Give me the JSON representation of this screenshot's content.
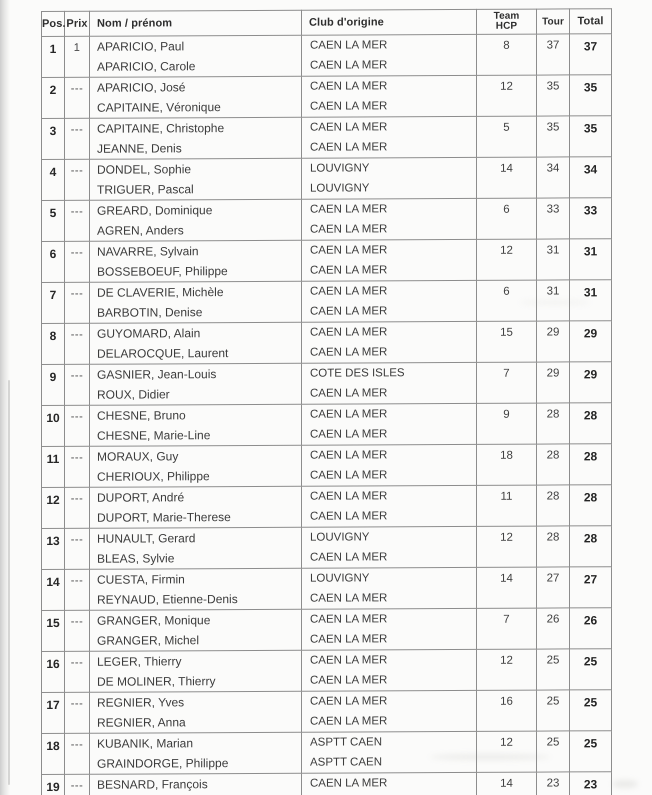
{
  "colors": {
    "page_bg": "#fbfbfa",
    "grid_line": "#8d8d8d",
    "grid_line_dark": "#5f5f5f",
    "text": "#3a3a3a",
    "text_bold": "#262626",
    "scan_edge": "#c6c6c6"
  },
  "table": {
    "headers": {
      "pos": "Pos.",
      "prix": "Prix",
      "name": "Nom / prénom",
      "club": "Club d'origine",
      "team_hcp_line1": "Team",
      "team_hcp_line2": "HCP",
      "tour": "Tour",
      "total": "Total"
    },
    "rows": [
      {
        "pos": "1",
        "prix": "1",
        "players": [
          {
            "name": "APARICIO, Paul",
            "club": "CAEN LA MER"
          },
          {
            "name": "APARICIO, Carole",
            "club": "CAEN LA MER"
          }
        ],
        "team_hcp": "8",
        "tour": "37",
        "total": "37"
      },
      {
        "pos": "2",
        "prix": "---",
        "players": [
          {
            "name": "APARICIO, José",
            "club": "CAEN LA MER"
          },
          {
            "name": "CAPITAINE, Véronique",
            "club": "CAEN LA MER"
          }
        ],
        "team_hcp": "12",
        "tour": "35",
        "total": "35"
      },
      {
        "pos": "3",
        "prix": "---",
        "players": [
          {
            "name": "CAPITAINE, Christophe",
            "club": "CAEN LA MER"
          },
          {
            "name": "JEANNE, Denis",
            "club": "CAEN LA MER"
          }
        ],
        "team_hcp": "5",
        "tour": "35",
        "total": "35"
      },
      {
        "pos": "4",
        "prix": "---",
        "players": [
          {
            "name": "DONDEL, Sophie",
            "club": "LOUVIGNY"
          },
          {
            "name": "TRIGUER, Pascal",
            "club": "LOUVIGNY"
          }
        ],
        "team_hcp": "14",
        "tour": "34",
        "total": "34"
      },
      {
        "pos": "5",
        "prix": "---",
        "players": [
          {
            "name": "GREARD, Dominique",
            "club": "CAEN LA MER"
          },
          {
            "name": "AGREN, Anders",
            "club": "CAEN LA MER"
          }
        ],
        "team_hcp": "6",
        "tour": "33",
        "total": "33"
      },
      {
        "pos": "6",
        "prix": "---",
        "players": [
          {
            "name": "NAVARRE, Sylvain",
            "club": "CAEN LA MER"
          },
          {
            "name": "BOSSEBOEUF, Philippe",
            "club": "CAEN LA MER"
          }
        ],
        "team_hcp": "12",
        "tour": "31",
        "total": "31"
      },
      {
        "pos": "7",
        "prix": "---",
        "players": [
          {
            "name": "DE CLAVERIE, Michèle",
            "club": "CAEN LA MER"
          },
          {
            "name": "BARBOTIN, Denise",
            "club": "CAEN LA MER"
          }
        ],
        "team_hcp": "6",
        "tour": "31",
        "total": "31"
      },
      {
        "pos": "8",
        "prix": "---",
        "players": [
          {
            "name": "GUYOMARD, Alain",
            "club": "CAEN LA MER"
          },
          {
            "name": "DELAROCQUE, Laurent",
            "club": "CAEN LA MER"
          }
        ],
        "team_hcp": "15",
        "tour": "29",
        "total": "29"
      },
      {
        "pos": "9",
        "prix": "---",
        "players": [
          {
            "name": "GASNIER, Jean-Louis",
            "club": "COTE DES ISLES"
          },
          {
            "name": "ROUX, Didier",
            "club": "CAEN LA MER"
          }
        ],
        "team_hcp": "7",
        "tour": "29",
        "total": "29"
      },
      {
        "pos": "10",
        "prix": "---",
        "players": [
          {
            "name": "CHESNE, Bruno",
            "club": "CAEN LA MER"
          },
          {
            "name": "CHESNE, Marie-Line",
            "club": "CAEN LA MER"
          }
        ],
        "team_hcp": "9",
        "tour": "28",
        "total": "28"
      },
      {
        "pos": "11",
        "prix": "---",
        "players": [
          {
            "name": "MORAUX, Guy",
            "club": "CAEN LA MER"
          },
          {
            "name": "CHERIOUX, Philippe",
            "club": "CAEN LA MER"
          }
        ],
        "team_hcp": "18",
        "tour": "28",
        "total": "28"
      },
      {
        "pos": "12",
        "prix": "---",
        "players": [
          {
            "name": "DUPORT, André",
            "club": "CAEN LA MER"
          },
          {
            "name": "DUPORT, Marie-Therese",
            "club": "CAEN LA MER"
          }
        ],
        "team_hcp": "11",
        "tour": "28",
        "total": "28"
      },
      {
        "pos": "13",
        "prix": "---",
        "players": [
          {
            "name": "HUNAULT, Gerard",
            "club": "LOUVIGNY"
          },
          {
            "name": "BLEAS, Sylvie",
            "club": "CAEN LA MER"
          }
        ],
        "team_hcp": "12",
        "tour": "28",
        "total": "28"
      },
      {
        "pos": "14",
        "prix": "---",
        "players": [
          {
            "name": "CUESTA, Firmin",
            "club": "LOUVIGNY"
          },
          {
            "name": "REYNAUD, Etienne-Denis",
            "club": "CAEN LA MER"
          }
        ],
        "team_hcp": "14",
        "tour": "27",
        "total": "27"
      },
      {
        "pos": "15",
        "prix": "---",
        "players": [
          {
            "name": "GRANGER, Monique",
            "club": "CAEN LA MER"
          },
          {
            "name": "GRANGER, Michel",
            "club": "CAEN LA MER"
          }
        ],
        "team_hcp": "7",
        "tour": "26",
        "total": "26"
      },
      {
        "pos": "16",
        "prix": "---",
        "players": [
          {
            "name": "LEGER, Thierry",
            "club": "CAEN LA MER"
          },
          {
            "name": "DE MOLINER, Thierry",
            "club": "CAEN LA MER"
          }
        ],
        "team_hcp": "12",
        "tour": "25",
        "total": "25"
      },
      {
        "pos": "17",
        "prix": "---",
        "players": [
          {
            "name": "REGNIER, Yves",
            "club": "CAEN LA MER"
          },
          {
            "name": "REGNIER, Anna",
            "club": "CAEN LA MER"
          }
        ],
        "team_hcp": "16",
        "tour": "25",
        "total": "25"
      },
      {
        "pos": "18",
        "prix": "---",
        "players": [
          {
            "name": "KUBANIK, Marian",
            "club": "ASPTT CAEN"
          },
          {
            "name": "GRAINDORGE, Philippe",
            "club": "ASPTT CAEN"
          }
        ],
        "team_hcp": "12",
        "tour": "25",
        "total": "25"
      },
      {
        "pos": "19",
        "prix": "---",
        "players": [
          {
            "name": "BESNARD, François",
            "club": "CAEN LA MER"
          }
        ],
        "team_hcp": "14",
        "tour": "23",
        "total": "23"
      }
    ]
  }
}
